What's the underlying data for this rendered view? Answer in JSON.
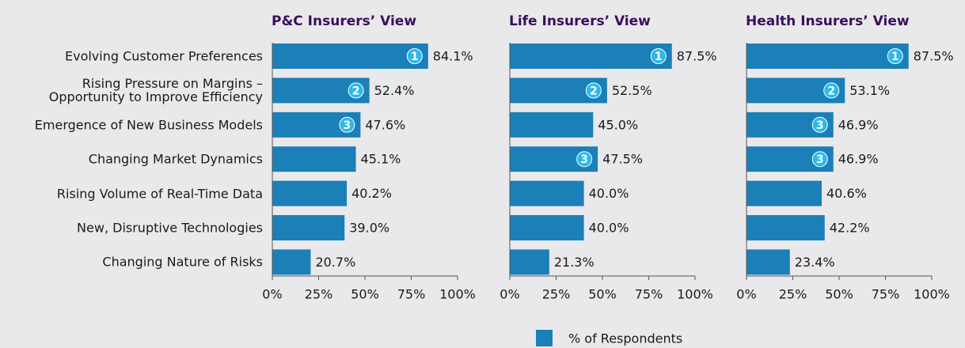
{
  "chart_data": [
    {
      "type": "bar",
      "title": "P&C Insurers’ View",
      "categories": [
        "Evolving Customer Preferences",
        "Rising Pressure on Margins –\nOpportunity to Improve Efficiency",
        "Emergence of New Business Models",
        "Changing Market Dynamics",
        "Rising Volume of Real-Time Data",
        "New, Disruptive Technologies",
        "Changing Nature of Risks"
      ],
      "series": [
        {
          "name": "% of Respondents",
          "color": "#1b7fb8",
          "values": [
            84.1,
            52.4,
            47.6,
            45.1,
            40.2,
            39.0,
            20.7
          ],
          "value_labels": [
            "84.1%",
            "52.4%",
            "47.6%",
            "45.1%",
            "40.2%",
            "39.0%",
            "20.7%"
          ]
        }
      ],
      "ranks": [
        1,
        2,
        3,
        null,
        null,
        null,
        null
      ],
      "xlim": [
        0,
        100
      ],
      "xticks": [
        {
          "value": 0,
          "label": "0%"
        },
        {
          "value": 25,
          "label": "25%"
        },
        {
          "value": 50,
          "label": "50%"
        },
        {
          "value": 75,
          "label": "75%"
        },
        {
          "value": 100,
          "label": "100%"
        }
      ]
    },
    {
      "type": "bar",
      "title": "Life Insurers’ View",
      "series": [
        {
          "color": "#1b7fb8",
          "values": [
            87.5,
            52.5,
            45.0,
            47.5,
            40.0,
            40.0,
            21.3
          ],
          "value_labels": [
            "87.5%",
            "52.5%",
            "45.0%",
            "47.5%",
            "40.0%",
            "40.0%",
            "21.3%"
          ]
        }
      ],
      "ranks": [
        1,
        2,
        null,
        3,
        null,
        null,
        null
      ],
      "xlim": [
        0,
        100
      ],
      "xticks": [
        {
          "value": 0,
          "label": "0%"
        },
        {
          "value": 25,
          "label": "25%"
        },
        {
          "value": 50,
          "label": "50%"
        },
        {
          "value": 75,
          "label": "75%"
        },
        {
          "value": 100,
          "label": "100%"
        }
      ]
    },
    {
      "type": "bar",
      "title": "Health Insurers’ View",
      "series": [
        {
          "color": "#1b7fb8",
          "values": [
            87.5,
            53.1,
            46.9,
            46.9,
            40.6,
            42.2,
            23.4
          ],
          "value_labels": [
            "87.5%",
            "53.1%",
            "46.9%",
            "46.9%",
            "40.6%",
            "42.2%",
            "23.4%"
          ]
        }
      ],
      "ranks": [
        1,
        2,
        3,
        3,
        null,
        null,
        null
      ],
      "xlim": [
        0,
        100
      ],
      "xticks": [
        {
          "value": 0,
          "label": "0%"
        },
        {
          "value": 25,
          "label": "25%"
        },
        {
          "value": 50,
          "label": "50%"
        },
        {
          "value": 75,
          "label": "75%"
        },
        {
          "value": 100,
          "label": "100%"
        }
      ]
    }
  ]
}
